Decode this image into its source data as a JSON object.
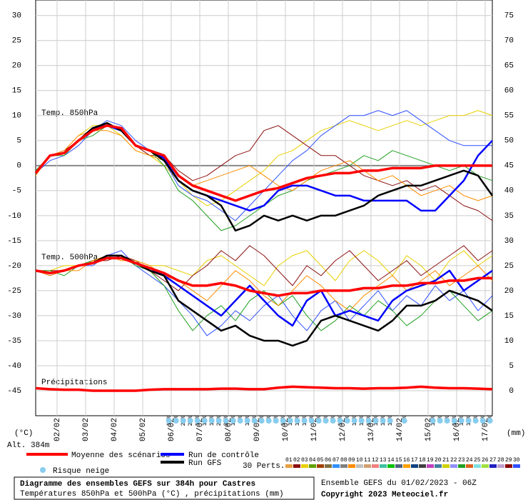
{
  "chart_data": {
    "type": "line",
    "title": "Diagramme des ensembles GEFS sur 384h pour Castres",
    "subtitle": "Températures 850hPa et 500hPa (°C) , précipitations (mm)",
    "run_info": "Ensemble GEFS du 01/02/2023 - 06Z",
    "copyright": "Copyright 2023 Meteociel.fr",
    "y_unit": "(°C)",
    "altitude": "Alt. 384m",
    "y2_unit": "(mm)",
    "annotations": [
      "Temp. 850hPa",
      "Temp. 500hPa",
      "Précipitations"
    ],
    "legend_labels": {
      "mean": "Moyenne des scénarios",
      "control": "Run de contrôle",
      "gfs": "Run GFS",
      "snow": "Risque neige",
      "perts": "30 Perts."
    },
    "grid": true,
    "xlim": [
      0,
      384
    ],
    "xticks": [
      {
        "value": 18,
        "label": "02/02"
      },
      {
        "value": 42,
        "label": "03/02"
      },
      {
        "value": 66,
        "label": "04/02"
      },
      {
        "value": 90,
        "label": "05/02"
      },
      {
        "value": 114,
        "label": "06/02"
      },
      {
        "value": 138,
        "label": "07/02"
      },
      {
        "value": 162,
        "label": "08/02"
      },
      {
        "value": 186,
        "label": "09/02"
      },
      {
        "value": 210,
        "label": "10/02"
      },
      {
        "value": 234,
        "label": "11/02"
      },
      {
        "value": 258,
        "label": "12/02"
      },
      {
        "value": 282,
        "label": "13/02"
      },
      {
        "value": 306,
        "label": "14/02"
      },
      {
        "value": 330,
        "label": "15/02"
      },
      {
        "value": 354,
        "label": "16/02"
      },
      {
        "value": 378,
        "label": "17/02"
      }
    ],
    "ylim": [
      -50,
      33.1
    ],
    "yticks": [
      30,
      25,
      20,
      15,
      10,
      5,
      0,
      -5,
      -10,
      -15,
      -20,
      -25,
      -30,
      -35,
      -40,
      -45
    ],
    "y2lim": [
      -5,
      78.1
    ],
    "y2ticks": [
      75,
      70,
      65,
      60,
      55,
      50,
      45,
      40,
      35,
      30,
      25,
      20,
      15,
      10,
      5,
      0
    ],
    "x": [
      0,
      12,
      24,
      36,
      48,
      60,
      72,
      84,
      96,
      108,
      120,
      132,
      144,
      156,
      168,
      180,
      192,
      204,
      216,
      228,
      240,
      252,
      264,
      276,
      288,
      300,
      312,
      324,
      336,
      348,
      360,
      372,
      384
    ],
    "series": [
      {
        "color": "#e8d000",
        "width": 1,
        "values": [
          -1.5,
          2,
          3,
          6,
          8,
          8,
          6,
          3,
          2,
          0,
          -3,
          -6,
          -8,
          -7,
          -5,
          -3,
          -1,
          2,
          3,
          5,
          7,
          8,
          9,
          8,
          7,
          8,
          9,
          8,
          9,
          10,
          10,
          11,
          10
        ]
      },
      {
        "color": "#3050ff",
        "width": 1,
        "values": [
          -1.5,
          1,
          2,
          4,
          7,
          9,
          8,
          5,
          3,
          1,
          -4,
          -6,
          -7,
          -9,
          -11,
          -8,
          -5,
          -2,
          1,
          3,
          6,
          8,
          10,
          10,
          11,
          10,
          11,
          9,
          7,
          5,
          4,
          4,
          4
        ]
      },
      {
        "color": "#8b1010",
        "width": 1,
        "values": [
          -1.5,
          2,
          3,
          5,
          7,
          8,
          7,
          4,
          2,
          2,
          -1,
          -3,
          -2,
          0,
          2,
          3,
          7,
          8,
          6,
          4,
          2,
          2,
          0,
          -2,
          -3,
          -4,
          -3,
          -5,
          -4,
          -6,
          -8,
          -9,
          -11
        ]
      },
      {
        "color": "#20a020",
        "width": 1,
        "values": [
          -1,
          2,
          2,
          5,
          6,
          8,
          7,
          4,
          3,
          0,
          -5,
          -7,
          -10,
          -13,
          -12,
          -10,
          -8,
          -6,
          -5,
          -3,
          -2,
          -1,
          0,
          2,
          1,
          3,
          2,
          1,
          0,
          -1,
          0,
          -2,
          -3
        ]
      },
      {
        "color": "#ff8c00",
        "width": 1,
        "values": [
          -2,
          2,
          3,
          6,
          7,
          7,
          6,
          3,
          2,
          1,
          -2,
          -4,
          -3,
          -2,
          -1,
          0,
          -2,
          -4,
          -5,
          -3,
          -1,
          0,
          1,
          -1,
          -3,
          -2,
          -4,
          -6,
          -5,
          -4,
          -6,
          -7,
          -6
        ]
      },
      {
        "color": "#e8d000",
        "width": 1,
        "values": [
          -21,
          -21,
          -20,
          -20,
          -19,
          -18,
          -18,
          -19,
          -20,
          -20,
          -21,
          -22,
          -19,
          -18,
          -20,
          -22,
          -24,
          -20,
          -18,
          -17,
          -20,
          -23,
          -19,
          -17,
          -19,
          -22,
          -18,
          -20,
          -23,
          -19,
          -17,
          -20,
          -18
        ]
      },
      {
        "color": "#3050ff",
        "width": 1,
        "values": [
          -21,
          -22,
          -21,
          -20,
          -20,
          -18,
          -17,
          -20,
          -22,
          -24,
          -27,
          -30,
          -34,
          -32,
          -29,
          -31,
          -28,
          -26,
          -30,
          -33,
          -29,
          -27,
          -31,
          -28,
          -25,
          -29,
          -26,
          -28,
          -24,
          -27,
          -25,
          -29,
          -26
        ]
      },
      {
        "color": "#8b1010",
        "width": 1,
        "values": [
          -21,
          -21,
          -21,
          -20,
          -19,
          -19,
          -18,
          -19,
          -21,
          -23,
          -25,
          -22,
          -20,
          -17,
          -19,
          -16,
          -18,
          -21,
          -24,
          -20,
          -22,
          -19,
          -17,
          -20,
          -23,
          -21,
          -19,
          -22,
          -20,
          -18,
          -16,
          -19,
          -17
        ]
      },
      {
        "color": "#20a020",
        "width": 1,
        "values": [
          -21,
          -21,
          -22,
          -20,
          -19,
          -18,
          -18,
          -20,
          -21,
          -24,
          -29,
          -33,
          -30,
          -28,
          -31,
          -27,
          -25,
          -28,
          -26,
          -30,
          -33,
          -31,
          -28,
          -30,
          -27,
          -29,
          -32,
          -30,
          -27,
          -25,
          -28,
          -31,
          -29
        ]
      },
      {
        "color": "#ff8c00",
        "width": 1,
        "values": [
          -21,
          -22,
          -21,
          -21,
          -19,
          -18,
          -19,
          -19,
          -20,
          -22,
          -23,
          -25,
          -27,
          -24,
          -21,
          -23,
          -26,
          -28,
          -25,
          -22,
          -24,
          -27,
          -29,
          -26,
          -24,
          -22,
          -25,
          -23,
          -21,
          -24,
          -22,
          -20,
          -23
        ]
      },
      {
        "color": "#0000ff",
        "width": 2.5,
        "values": [
          -1.5,
          2,
          2.5,
          5,
          7.5,
          8,
          7,
          4,
          3,
          1.5,
          -3,
          -5,
          -6,
          -7,
          -8,
          -9,
          -8,
          -5,
          -4,
          -4,
          -5,
          -6,
          -6,
          -7,
          -7,
          -7,
          -7,
          -9,
          -9,
          -6,
          -3,
          2,
          5
        ]
      },
      {
        "color": "#000000",
        "width": 2.5,
        "values": [
          -1.5,
          2,
          2.5,
          5,
          7.5,
          8.5,
          7,
          4,
          3,
          1,
          -3,
          -5,
          -6,
          -8,
          -13,
          -12,
          -10,
          -11,
          -10,
          -11,
          -10,
          -10,
          -9,
          -8,
          -6,
          -5,
          -4,
          -4,
          -3,
          -2,
          -1,
          -2,
          -6
        ]
      },
      {
        "color": "#0000ff",
        "width": 2.5,
        "values": [
          -21,
          -21.5,
          -21,
          -20,
          -19.5,
          -18,
          -18,
          -19.5,
          -20.5,
          -22,
          -24,
          -26,
          -28,
          -30,
          -27,
          -24,
          -27,
          -30,
          -32,
          -27,
          -25,
          -30,
          -29,
          -30,
          -31,
          -27,
          -25,
          -24,
          -23,
          -21,
          -25,
          -23,
          -21
        ]
      },
      {
        "color": "#000000",
        "width": 2.5,
        "values": [
          -21,
          -21.5,
          -21,
          -20,
          -19.5,
          -18,
          -18,
          -19.5,
          -21,
          -22,
          -27,
          -29,
          -31,
          -33,
          -32,
          -34,
          -35,
          -35,
          -36,
          -35,
          -31,
          -30,
          -31,
          -32,
          -33,
          -31,
          -28,
          -28,
          -27,
          -25,
          -26,
          -27,
          -29
        ]
      },
      {
        "color": "#ff0000",
        "width": 3.5,
        "values": [
          -1.5,
          2,
          2.5,
          5,
          7,
          8,
          7.5,
          4,
          3,
          2,
          -2,
          -4,
          -5,
          -6,
          -7,
          -6,
          -5,
          -4.5,
          -3.5,
          -2.5,
          -2,
          -1.5,
          -1.5,
          -1,
          -1,
          -0.5,
          -0.5,
          -0.5,
          0,
          0,
          0,
          0,
          0
        ]
      },
      {
        "color": "#ff0000",
        "width": 3.5,
        "values": [
          -21,
          -21.5,
          -21,
          -20,
          -19.5,
          -18.5,
          -18.5,
          -19.5,
          -20.5,
          -21.5,
          -23,
          -24,
          -24,
          -23.5,
          -24,
          -25,
          -25.5,
          -26,
          -25.5,
          -25.5,
          -25,
          -25,
          -25,
          -24.5,
          -24.5,
          -24,
          -24,
          -23.5,
          -23.5,
          -23,
          -23,
          -22.5,
          -22.5
        ]
      },
      {
        "color": "#ff0000",
        "width": 3.5,
        "axis": "y2",
        "values": [
          0.5,
          0.3,
          0.2,
          0.2,
          0,
          0,
          0,
          0,
          0.2,
          0.3,
          0.3,
          0.3,
          0.3,
          0.4,
          0.4,
          0.3,
          0.3,
          0.6,
          0.8,
          0.7,
          0.6,
          0.5,
          0.5,
          0.4,
          0.5,
          0.5,
          0.6,
          0.8,
          0.6,
          0.5,
          0.5,
          0.4,
          0.3
        ]
      }
    ],
    "legend_colors": {
      "mean": "#ff0000",
      "control": "#0000ff",
      "gfs": "#000000",
      "snow": "#88ccee"
    },
    "members": [
      {
        "name": "01",
        "color": "#e8a040"
      },
      {
        "name": "02",
        "color": "#8b1010"
      },
      {
        "name": "03",
        "color": "#e8d000"
      },
      {
        "name": "04",
        "color": "#60a000"
      },
      {
        "name": "05",
        "color": "#a04000"
      },
      {
        "name": "06",
        "color": "#807040"
      },
      {
        "name": "07",
        "color": "#3090ff"
      },
      {
        "name": "08",
        "color": "#808080"
      },
      {
        "name": "09",
        "color": "#ff8c00"
      },
      {
        "name": "10",
        "color": "#c0c0c0"
      },
      {
        "name": "11",
        "color": "#d0a070"
      },
      {
        "name": "12",
        "color": "#f08080"
      },
      {
        "name": "13",
        "color": "#40c0a0"
      },
      {
        "name": "14",
        "color": "#00c000"
      },
      {
        "name": "15",
        "color": "#506080"
      },
      {
        "name": "16",
        "color": "#ffa000"
      },
      {
        "name": "17",
        "color": "#104080"
      },
      {
        "name": "18",
        "color": "#404040"
      },
      {
        "name": "19",
        "color": "#c040c0"
      },
      {
        "name": "20",
        "color": "#4080a0"
      },
      {
        "name": "21",
        "color": "#d0d000"
      },
      {
        "name": "22",
        "color": "#9090ff"
      },
      {
        "name": "23",
        "color": "#20a020"
      },
      {
        "name": "24",
        "color": "#e06020"
      },
      {
        "name": "25",
        "color": "#80e0e0"
      },
      {
        "name": "26",
        "color": "#a0e040"
      },
      {
        "name": "27",
        "color": "#2020c0"
      },
      {
        "name": "28",
        "color": "#c0a0d0"
      },
      {
        "name": "29",
        "color": "#8b0000"
      },
      {
        "name": "30",
        "color": "#3050ff"
      }
    ],
    "snow": {
      "x": [
        112,
        118,
        124,
        130,
        136,
        142,
        148,
        154,
        160,
        166,
        172,
        178,
        184,
        190,
        196,
        202,
        208,
        214,
        220,
        226,
        232,
        238,
        244,
        250,
        256,
        262,
        268,
        274,
        280,
        286,
        292,
        298,
        310,
        334,
        340,
        346,
        352,
        358,
        364,
        370,
        376,
        382
      ],
      "values": [
        10,
        6,
        23,
        20,
        13,
        10,
        13,
        20,
        23,
        13,
        3,
        10,
        6,
        3,
        6,
        6,
        10,
        13,
        13,
        10,
        6,
        6,
        6,
        3,
        10,
        6,
        10,
        10,
        10,
        13,
        10,
        10,
        3,
        10,
        3,
        6,
        10,
        13,
        10,
        3,
        6,
        3
      ],
      "value_labels": [
        "10%",
        "6%",
        "23%",
        "20%",
        "13%",
        "10%",
        "13%",
        "20%",
        "23%",
        "13%",
        "3%",
        "10%",
        "6%",
        "3%",
        "6%",
        "6%",
        "10%",
        "13%",
        "13%",
        "10%",
        "6%",
        "6%",
        "6%",
        "3%",
        "10%",
        "6%",
        "10%",
        "10%",
        "10%",
        "13%",
        "10%",
        "10%",
        "3%",
        "10%",
        "3%",
        "6%",
        "10%",
        "13%",
        "10%",
        "3%",
        "6%",
        "3%"
      ]
    }
  }
}
